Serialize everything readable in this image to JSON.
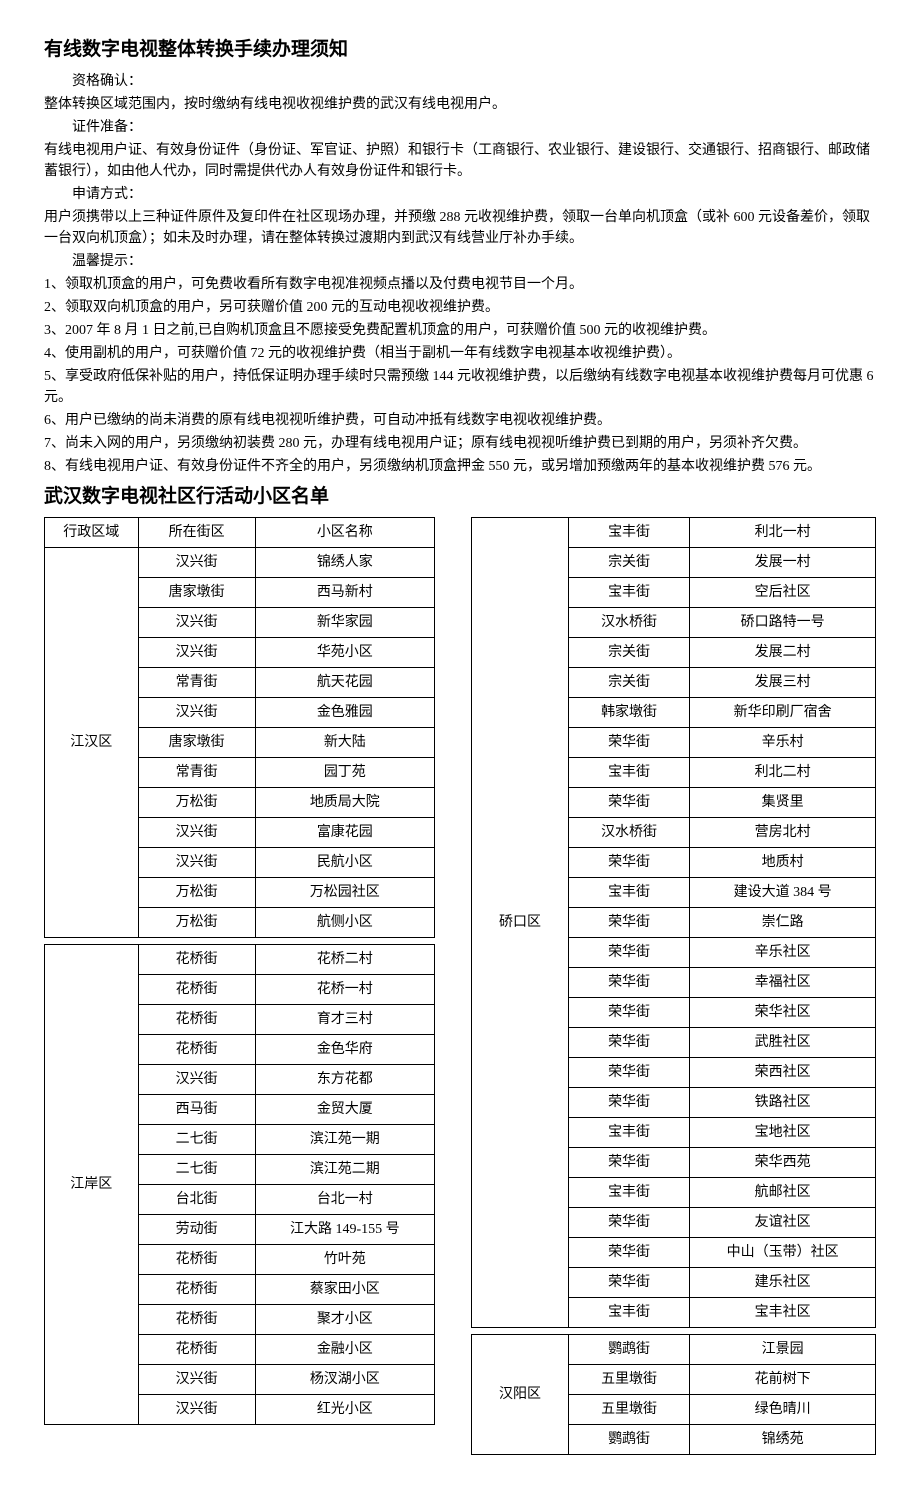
{
  "title1": "有线数字电视整体转换手续办理须知",
  "sec_1_h": "资格确认：",
  "sec_1_p": "整体转换区域范围内，按时缴纳有线电视收视维护费的武汉有线电视用户。",
  "sec_2_h": "证件准备：",
  "sec_2_p": "有线电视用户证、有效身份证件（身份证、军官证、护照）和银行卡（工商银行、农业银行、建设银行、交通银行、招商银行、邮政储蓄银行），如由他人代办，同时需提供代办人有效身份证件和银行卡。",
  "sec_3_h": "申请方式：",
  "sec_3_p": "用户须携带以上三种证件原件及复印件在社区现场办理，并预缴 288 元收视维护费，领取一台单向机顶盒（或补 600 元设备差价，领取一台双向机顶盒）；如未及时办理，请在整体转换过渡期内到武汉有线营业厅补办手续。",
  "sec_4_h": "温馨提示：",
  "tips": [
    "1、领取机顶盒的用户，可免费收看所有数字电视准视频点播以及付费电视节目一个月。",
    "2、领取双向机顶盒的用户，另可获赠价值 200 元的互动电视收视维护费。",
    "3、2007 年 8 月 1 日之前,已自购机顶盒且不愿接受免费配置机顶盒的用户，可获赠价值 500 元的收视维护费。",
    "4、使用副机的用户，可获赠价值 72 元的收视维护费（相当于副机一年有线数字电视基本收视维护费）。",
    "5、享受政府低保补贴的用户，持低保证明办理手续时只需预缴 144 元收视维护费，以后缴纳有线数字电视基本收视维护费每月可优惠 6 元。",
    "6、用户已缴纳的尚未消费的原有线电视视听维护费，可自动冲抵有线数字电视收视维护费。",
    "7、尚未入网的用户，另须缴纳初装费 280 元，办理有线电视用户证；原有线电视视听维护费已到期的用户，另须补齐欠费。",
    "8、有线电视用户证、有效身份证件不齐全的用户，另须缴纳机顶盒押金 550 元，或另增加预缴两年的基本收视维护费 576 元。"
  ],
  "title2": "武汉数字电视社区行活动小区名单",
  "headers": {
    "c1": "行政区域",
    "c2": "所在街区",
    "c3": "小区名称"
  },
  "tables_left": [
    {
      "district": "江汉区",
      "rows": [
        [
          "汉兴街",
          "锦绣人家"
        ],
        [
          "唐家墩街",
          "西马新村"
        ],
        [
          "汉兴街",
          "新华家园"
        ],
        [
          "汉兴街",
          "华苑小区"
        ],
        [
          "常青街",
          "航天花园"
        ],
        [
          "汉兴街",
          "金色雅园"
        ],
        [
          "唐家墩街",
          "新大陆"
        ],
        [
          "常青街",
          "园丁苑"
        ],
        [
          "万松街",
          "地质局大院"
        ],
        [
          "汉兴街",
          "富康花园"
        ],
        [
          "汉兴街",
          "民航小区"
        ],
        [
          "万松街",
          "万松园社区"
        ],
        [
          "万松街",
          "航侧小区"
        ]
      ]
    },
    {
      "district": "江岸区",
      "rows": [
        [
          "花桥街",
          "花桥二村"
        ],
        [
          "花桥街",
          "花桥一村"
        ],
        [
          "花桥街",
          "育才三村"
        ],
        [
          "花桥街",
          "金色华府"
        ],
        [
          "汉兴街",
          "东方花都"
        ],
        [
          "西马街",
          "金贸大厦"
        ],
        [
          "二七街",
          "滨江苑一期"
        ],
        [
          "二七街",
          "滨江苑二期"
        ],
        [
          "台北街",
          "台北一村"
        ],
        [
          "劳动街",
          "江大路 149-155 号"
        ],
        [
          "花桥街",
          "竹叶苑"
        ],
        [
          "花桥街",
          "蔡家田小区"
        ],
        [
          "花桥街",
          "聚才小区"
        ],
        [
          "花桥街",
          "金融小区"
        ],
        [
          "汉兴街",
          "杨汊湖小区"
        ],
        [
          "汉兴街",
          "红光小区"
        ]
      ]
    }
  ],
  "tables_right": [
    {
      "district": "硚口区",
      "before": [
        [
          "宝丰街",
          "利北一村"
        ],
        [
          "宗关街",
          "发展一村"
        ],
        [
          "宝丰街",
          "空后社区"
        ],
        [
          "汉水桥街",
          "硚口路特一号"
        ],
        [
          "宗关街",
          "发展二村"
        ],
        [
          "宗关街",
          "发展三村"
        ],
        [
          "韩家墩街",
          "新华印刷厂宿舍"
        ],
        [
          "荣华街",
          "辛乐村"
        ],
        [
          "宝丰街",
          "利北二村"
        ],
        [
          "荣华街",
          "集贤里"
        ],
        [
          "汉水桥街",
          "营房北村"
        ],
        [
          "荣华街",
          "地质村"
        ],
        [
          "宝丰街",
          "建设大道 384 号"
        ]
      ],
      "after": [
        [
          "荣华街",
          "崇仁路"
        ],
        [
          "荣华街",
          "辛乐社区"
        ],
        [
          "荣华街",
          "幸福社区"
        ],
        [
          "荣华街",
          "荣华社区"
        ],
        [
          "荣华街",
          "武胜社区"
        ],
        [
          "荣华街",
          "荣西社区"
        ],
        [
          "荣华街",
          "铁路社区"
        ],
        [
          "宝丰街",
          "宝地社区"
        ],
        [
          "荣华街",
          "荣华西苑"
        ],
        [
          "宝丰街",
          "航邮社区"
        ],
        [
          "荣华街",
          "友谊社区"
        ],
        [
          "荣华街",
          "中山（玉带）社区"
        ],
        [
          "荣华街",
          "建乐社区"
        ],
        [
          "宝丰街",
          "宝丰社区"
        ]
      ]
    },
    {
      "district": "汉阳区",
      "rows": [
        [
          "鹦鹉街",
          "江景园"
        ],
        [
          "五里墩街",
          "花前树下"
        ],
        [
          "五里墩街",
          "绿色晴川"
        ],
        [
          "鹦鹉街",
          "锦绣苑"
        ]
      ]
    }
  ]
}
